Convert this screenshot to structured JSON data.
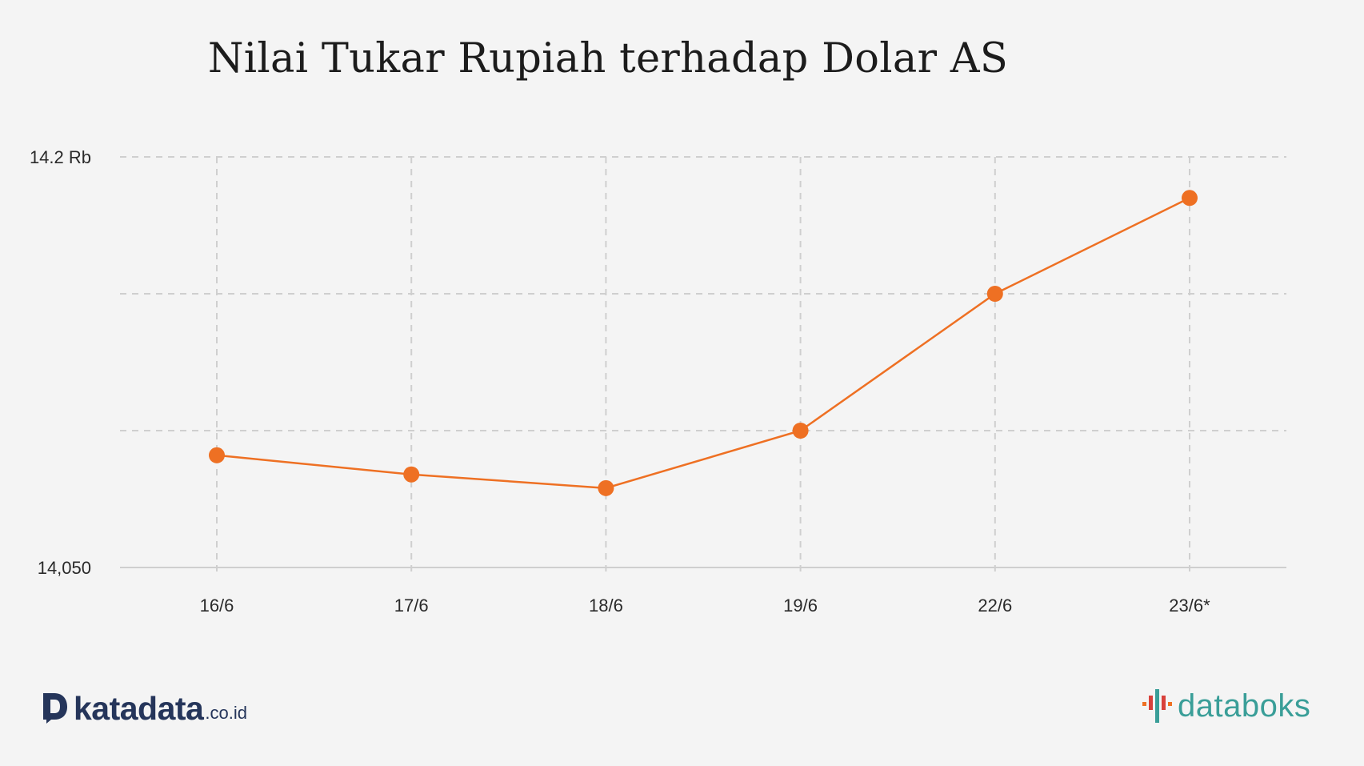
{
  "chart_data": {
    "type": "line",
    "title": "Nilai Tukar Rupiah terhadap Dolar AS",
    "xlabel": "",
    "ylabel": "",
    "categories": [
      "16/6",
      "17/6",
      "18/6",
      "19/6",
      "22/6",
      "23/6*"
    ],
    "series": [
      {
        "values": [
          14091,
          14084,
          14079,
          14100,
          14150,
          14185
        ],
        "color": "#ee7023"
      }
    ],
    "ylim": [
      14050,
      14200
    ],
    "y_tick_labels": [
      "14,050",
      "14.2 Rb"
    ],
    "grid": true
  },
  "brands": {
    "katadata_text": "katadata",
    "katadata_suffix": ".co.id",
    "databoks_text": "databoks"
  }
}
